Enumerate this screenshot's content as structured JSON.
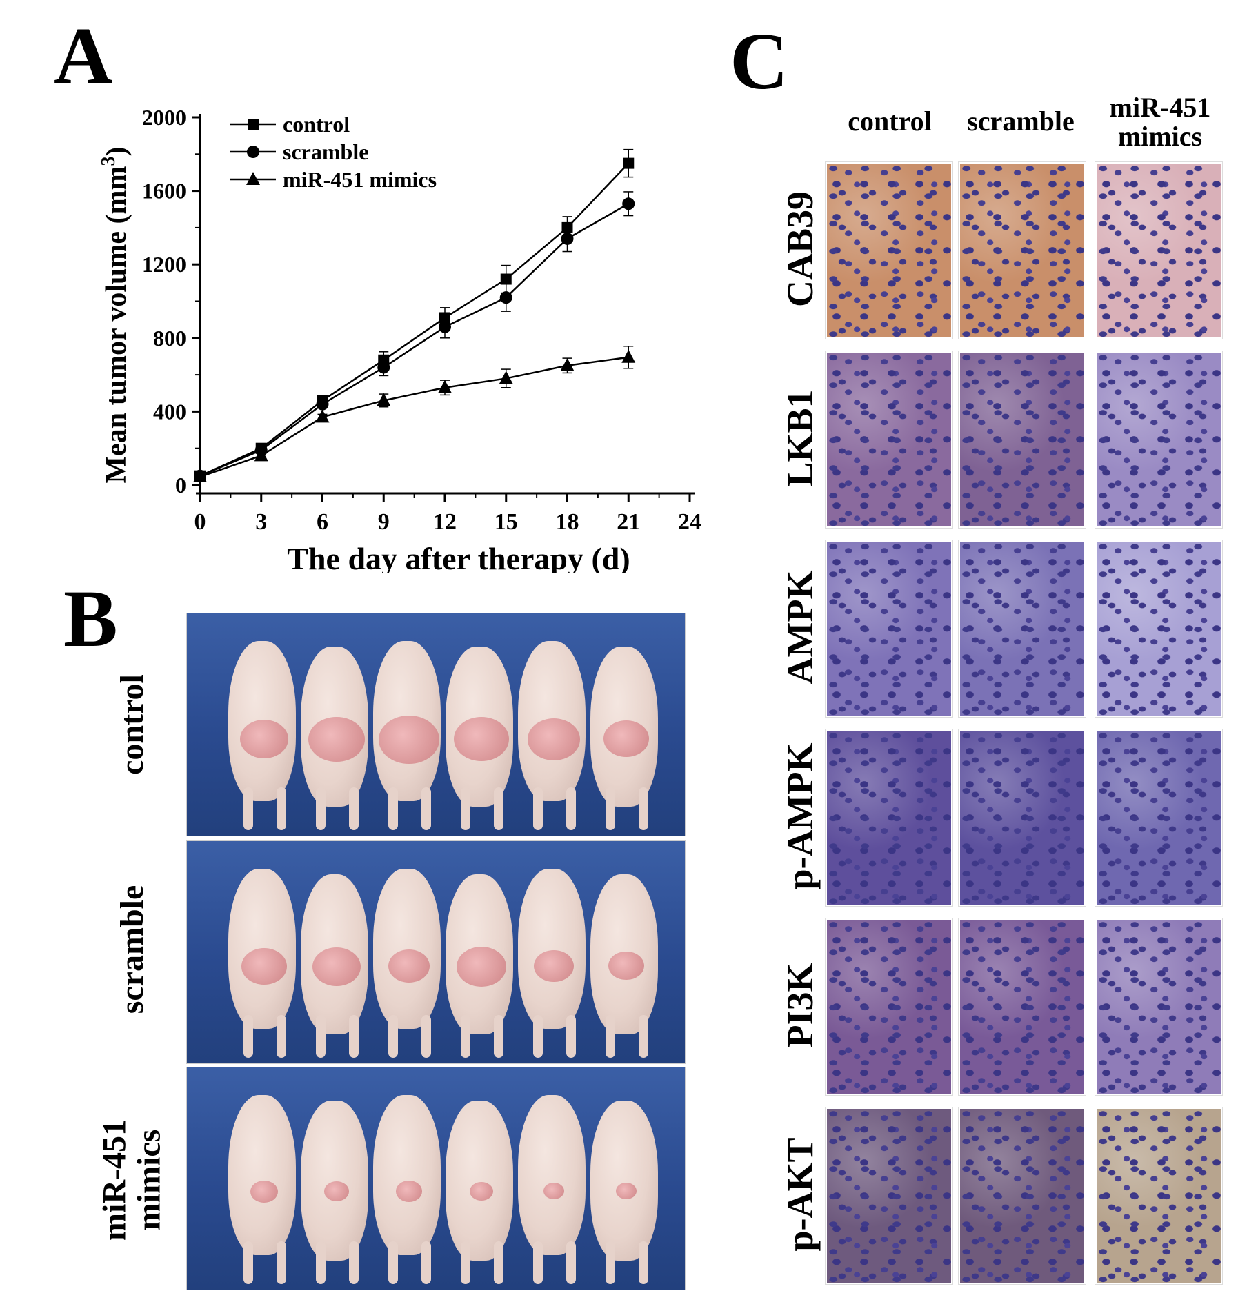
{
  "panels": {
    "a": "A",
    "b": "B",
    "c": "C"
  },
  "chart_data": {
    "type": "line",
    "title": "",
    "xlabel": "The day after therapy (d)",
    "ylabel": "Mean tumor volume (mm",
    "ylabel_sup": "3",
    "ylabel_close": ")",
    "xlim": [
      0,
      24
    ],
    "ylim": [
      0,
      2000
    ],
    "xticks": [
      0,
      3,
      6,
      9,
      12,
      15,
      18,
      21,
      24
    ],
    "yticks": [
      0,
      400,
      800,
      1200,
      1600,
      2000
    ],
    "x": [
      0,
      3,
      6,
      9,
      12,
      15,
      18,
      21
    ],
    "legend_position": "top-left",
    "series": [
      {
        "name": "control",
        "marker": "square",
        "values": [
          50,
          200,
          460,
          680,
          910,
          1120,
          1400,
          1750
        ],
        "errors": [
          10,
          20,
          20,
          45,
          55,
          75,
          60,
          75
        ]
      },
      {
        "name": "scramble",
        "marker": "circle",
        "values": [
          50,
          190,
          440,
          640,
          860,
          1020,
          1340,
          1530
        ],
        "errors": [
          10,
          15,
          20,
          45,
          60,
          75,
          70,
          65
        ]
      },
      {
        "name": "miR-451 mimics",
        "marker": "triangle",
        "values": [
          45,
          160,
          370,
          460,
          530,
          580,
          650,
          695
        ],
        "errors": [
          10,
          15,
          15,
          35,
          40,
          50,
          40,
          60
        ]
      }
    ]
  },
  "panel_b": {
    "rows": [
      {
        "label": "control"
      },
      {
        "label": "scramble"
      },
      {
        "label_line1": "miR-451",
        "label_line2": "mimics"
      }
    ]
  },
  "panel_c": {
    "columns": [
      {
        "label": "control"
      },
      {
        "label": "scramble"
      },
      {
        "label_line1": "miR-451",
        "label_line2": "mimics"
      }
    ],
    "rows": [
      {
        "label": "CAB39",
        "colors": [
          "#c98f6a",
          "#c98f6a",
          "#d9b0b8"
        ]
      },
      {
        "label": "LKB1",
        "colors": [
          "#8a6a9e",
          "#7f6294",
          "#9a8bc4"
        ]
      },
      {
        "label": "AMPK",
        "colors": [
          "#7f73b8",
          "#7b72b6",
          "#a7a0d4"
        ]
      },
      {
        "label": "p-AMPK",
        "colors": [
          "#5e4f9c",
          "#5d519e",
          "#6f68b0"
        ]
      },
      {
        "label": "PI3K",
        "colors": [
          "#7a5a96",
          "#795a98",
          "#8f7cb8"
        ]
      },
      {
        "label": "p-AKT",
        "colors": [
          "#6e5a7e",
          "#6f5a7c",
          "#b7a48e"
        ]
      }
    ]
  }
}
